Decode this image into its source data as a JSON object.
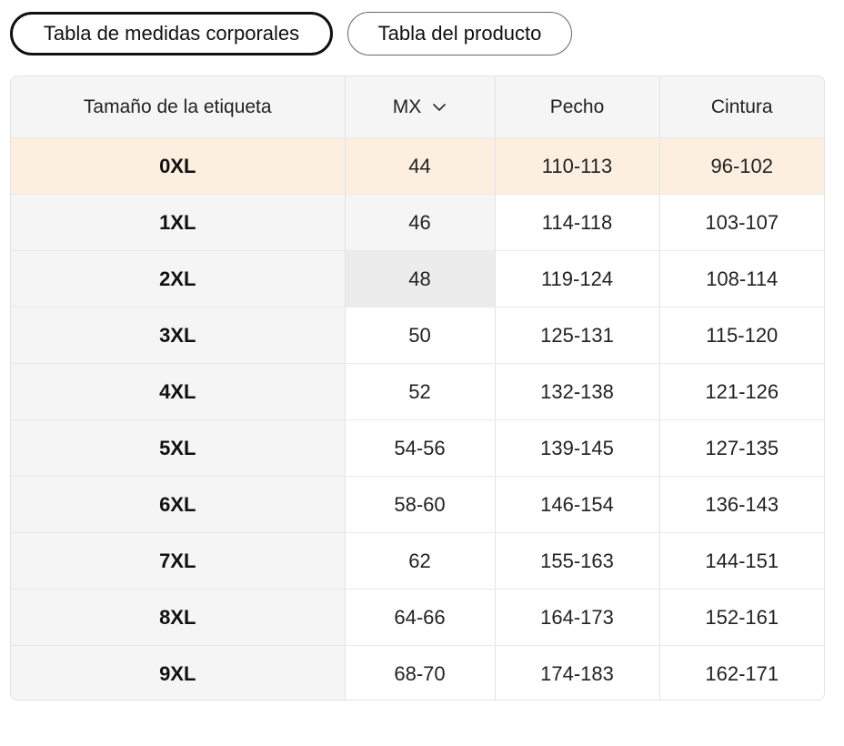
{
  "tabs": {
    "body_table": "Tabla de medidas corporales",
    "product_table": "Tabla del producto"
  },
  "table": {
    "headers": {
      "label_size": "Tamaño de la etiqueta",
      "region": "MX",
      "chest": "Pecho",
      "waist": "Cintura"
    },
    "region_icon": "chevron-down-icon",
    "highlight_color": "#fdefe0",
    "rows": [
      {
        "size": "0XL",
        "mx": "44",
        "chest": "110-113",
        "waist": "96-102"
      },
      {
        "size": "1XL",
        "mx": "46",
        "chest": "114-118",
        "waist": "103-107"
      },
      {
        "size": "2XL",
        "mx": "48",
        "chest": "119-124",
        "waist": "108-114"
      },
      {
        "size": "3XL",
        "mx": "50",
        "chest": "125-131",
        "waist": "115-120"
      },
      {
        "size": "4XL",
        "mx": "52",
        "chest": "132-138",
        "waist": "121-126"
      },
      {
        "size": "5XL",
        "mx": "54-56",
        "chest": "139-145",
        "waist": "127-135"
      },
      {
        "size": "6XL",
        "mx": "58-60",
        "chest": "146-154",
        "waist": "136-143"
      },
      {
        "size": "7XL",
        "mx": "62",
        "chest": "155-163",
        "waist": "144-151"
      },
      {
        "size": "8XL",
        "mx": "64-66",
        "chest": "164-173",
        "waist": "152-161"
      },
      {
        "size": "9XL",
        "mx": "68-70",
        "chest": "174-183",
        "waist": "162-171"
      }
    ]
  }
}
